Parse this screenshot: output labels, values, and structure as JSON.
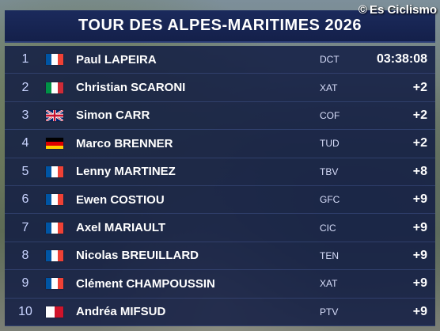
{
  "watermark": {
    "symbol": "©",
    "text": "Es Ciclismo"
  },
  "title": "TOUR DES ALPES-MARITIMES 2026",
  "rows": [
    {
      "pos": "1",
      "flag": "fr",
      "name": "Paul LAPEIRA",
      "team": "DCT",
      "time": "03:38:08"
    },
    {
      "pos": "2",
      "flag": "it",
      "name": "Christian SCARONI",
      "team": "XAT",
      "time": "+2"
    },
    {
      "pos": "3",
      "flag": "gb",
      "name": "Simon CARR",
      "team": "COF",
      "time": "+2"
    },
    {
      "pos": "4",
      "flag": "de",
      "name": "Marco BRENNER",
      "team": "TUD",
      "time": "+2"
    },
    {
      "pos": "5",
      "flag": "fr",
      "name": "Lenny MARTINEZ",
      "team": "TBV",
      "time": "+8"
    },
    {
      "pos": "6",
      "flag": "fr",
      "name": "Ewen COSTIOU",
      "team": "GFC",
      "time": "+9"
    },
    {
      "pos": "7",
      "flag": "fr",
      "name": "Axel MARIAULT",
      "team": "CIC",
      "time": "+9"
    },
    {
      "pos": "8",
      "flag": "fr",
      "name": "Nicolas BREUILLARD",
      "team": "TEN",
      "time": "+9"
    },
    {
      "pos": "9",
      "flag": "fr",
      "name": "Clément CHAMPOUSSIN",
      "team": "XAT",
      "time": "+9"
    },
    {
      "pos": "10",
      "flag": "mt",
      "name": "Andréa MIFSUD",
      "team": "PTV",
      "time": "+9"
    }
  ],
  "colors": {
    "panel": "#0e1842",
    "title_bar": "#1b2a5c",
    "text": "#ffffff"
  }
}
